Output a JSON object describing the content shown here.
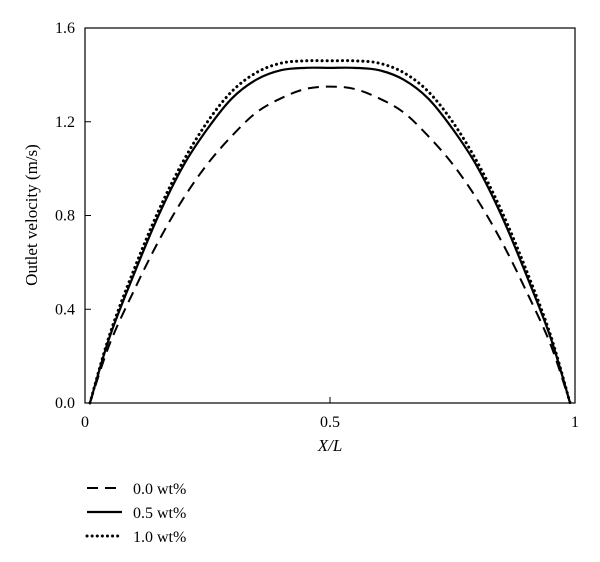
{
  "chart_data": {
    "type": "line",
    "title": "",
    "xlabel": "X/L",
    "ylabel": "Outlet velocity (m/s)",
    "xlim": [
      0,
      1
    ],
    "ylim": [
      0,
      1.6
    ],
    "xticks": [
      0,
      0.5,
      1
    ],
    "xtick_labels": [
      "0",
      "0.5",
      "1"
    ],
    "yticks": [
      0,
      0.4,
      0.8,
      1.2,
      1.6
    ],
    "ytick_labels": [
      "0.0",
      "0.4",
      "0.8",
      "1.2",
      "1.6"
    ],
    "grid": false,
    "legend_position": "below-left",
    "x": [
      0.01,
      0.05,
      0.1,
      0.15,
      0.2,
      0.25,
      0.3,
      0.35,
      0.4,
      0.45,
      0.5,
      0.55,
      0.6,
      0.65,
      0.7,
      0.75,
      0.8,
      0.85,
      0.9,
      0.95,
      0.99
    ],
    "series": [
      {
        "name": "0.0 wt%",
        "line_style": "dashed",
        "color": "#000000",
        "values": [
          0.0,
          0.25,
          0.48,
          0.69,
          0.87,
          1.02,
          1.14,
          1.24,
          1.3,
          1.34,
          1.35,
          1.34,
          1.3,
          1.24,
          1.14,
          1.02,
          0.87,
          0.69,
          0.48,
          0.25,
          0.0
        ]
      },
      {
        "name": "0.5 wt%",
        "line_style": "solid",
        "color": "#000000",
        "values": [
          0.0,
          0.28,
          0.55,
          0.8,
          1.01,
          1.17,
          1.3,
          1.38,
          1.42,
          1.43,
          1.43,
          1.43,
          1.42,
          1.38,
          1.3,
          1.17,
          1.01,
          0.8,
          0.55,
          0.28,
          0.0
        ]
      },
      {
        "name": "1.0 wt%",
        "line_style": "dotted",
        "color": "#000000",
        "values": [
          0.0,
          0.29,
          0.57,
          0.82,
          1.03,
          1.2,
          1.33,
          1.41,
          1.45,
          1.46,
          1.46,
          1.46,
          1.45,
          1.41,
          1.33,
          1.2,
          1.03,
          0.82,
          0.57,
          0.29,
          0.0
        ]
      }
    ]
  }
}
